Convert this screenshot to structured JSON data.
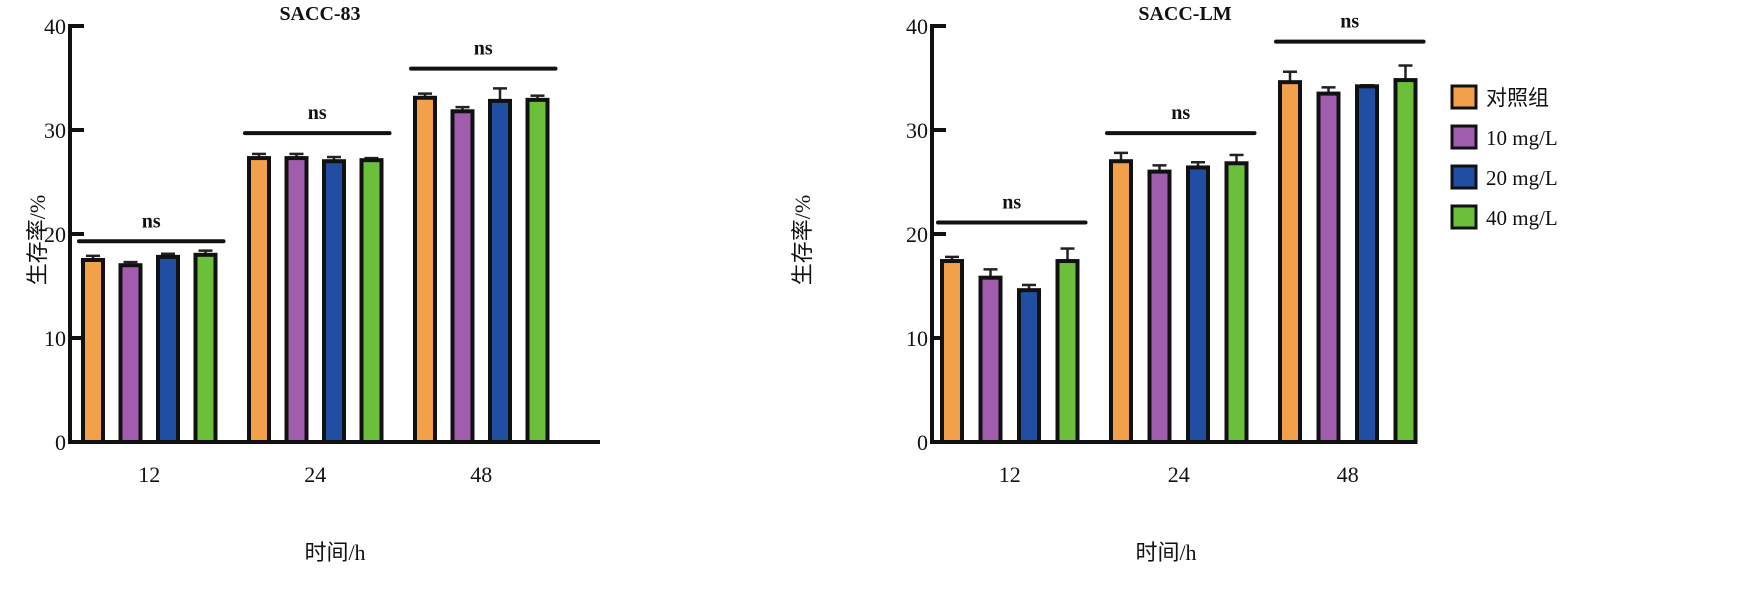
{
  "chart_data": [
    {
      "type": "bar",
      "title": "SACC-83",
      "xlabel": "时间/h",
      "ylabel": "生存率/%",
      "ylim": [
        0,
        40
      ],
      "yticks": [
        "0",
        "10",
        "20",
        "30",
        "40"
      ],
      "categories": [
        "12",
        "24",
        "48"
      ],
      "significance": [
        "ns",
        "ns",
        "ns"
      ],
      "significance_level": [
        19.3,
        29.7,
        35.9
      ],
      "series": [
        {
          "name": "对照组",
          "color": "#f2a04a",
          "values": [
            17.5,
            27.3,
            33.1
          ],
          "errors": [
            0.4,
            0.4,
            0.4
          ]
        },
        {
          "name": "10 mg/L",
          "color": "#a05cad",
          "values": [
            17.0,
            27.3,
            31.8
          ],
          "errors": [
            0.3,
            0.4,
            0.4
          ]
        },
        {
          "name": "20 mg/L",
          "color": "#1f4ea3",
          "values": [
            17.8,
            27.0,
            32.8
          ],
          "errors": [
            0.3,
            0.4,
            1.2
          ]
        },
        {
          "name": "40 mg/L",
          "color": "#6cbf3a",
          "values": [
            18.0,
            27.1,
            32.9
          ],
          "errors": [
            0.4,
            0.2,
            0.4
          ]
        }
      ]
    },
    {
      "type": "bar",
      "title": "SACC-LM",
      "xlabel": "时间/h",
      "ylabel": "生存率/%",
      "ylim": [
        0,
        40
      ],
      "yticks": [
        "0",
        "10",
        "20",
        "30",
        "40"
      ],
      "categories": [
        "12",
        "24",
        "48"
      ],
      "significance": [
        "ns",
        "ns",
        "ns"
      ],
      "significance_level": [
        21.1,
        29.7,
        38.5
      ],
      "legend": "right",
      "series": [
        {
          "name": "对照组",
          "color": "#f2a04a",
          "values": [
            17.4,
            27.0,
            34.6
          ],
          "errors": [
            0.4,
            0.8,
            1.0
          ]
        },
        {
          "name": "10 mg/L",
          "color": "#a05cad",
          "values": [
            15.8,
            26.0,
            33.5
          ],
          "errors": [
            0.8,
            0.6,
            0.6
          ]
        },
        {
          "name": "20 mg/L",
          "color": "#1f4ea3",
          "values": [
            14.6,
            26.4,
            34.2
          ],
          "errors": [
            0.5,
            0.5,
            0.1
          ]
        },
        {
          "name": "40 mg/L",
          "color": "#6cbf3a",
          "values": [
            17.4,
            26.8,
            34.8
          ],
          "errors": [
            1.2,
            0.8,
            1.4
          ]
        }
      ]
    }
  ]
}
